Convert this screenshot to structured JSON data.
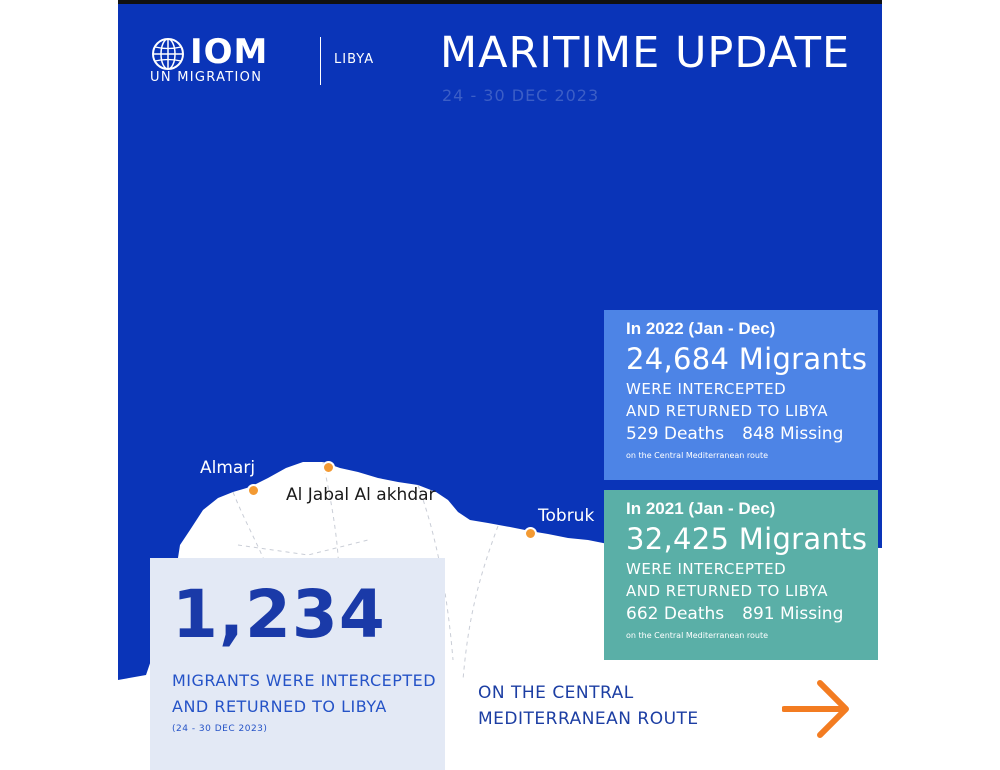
{
  "header": {
    "logo_word": "IOM",
    "logo_sub": "UN MIGRATION",
    "country": "LIBYA",
    "title": "MARITIME UPDATE",
    "date_range": "24 - 30 DEC 2023"
  },
  "map": {
    "cities": [
      "Almarj",
      "Al Jabal Al akhdar",
      "Tobruk"
    ]
  },
  "card_2022": {
    "year": "In 2022 (Jan - Dec)",
    "count": "24,684 Migrants",
    "line1": "WERE INTERCEPTED",
    "line2": "AND RETURNED TO LIBYA",
    "deaths": "529 Deaths",
    "missing": "848 Missing",
    "route": "on the Central Mediterranean route"
  },
  "card_2021": {
    "year": "In 2021 (Jan - Dec)",
    "count": "32,425 Migrants",
    "line1": "WERE INTERCEPTED",
    "line2": "AND RETURNED TO LIBYA",
    "deaths": "662 Deaths",
    "missing": "891 Missing",
    "route": "on the Central Mediterranean route"
  },
  "main": {
    "number": "1,234",
    "line1": "MIGRANTS WERE INTERCEPTED",
    "line2": "AND RETURNED TO LIBYA",
    "date": "(24 - 30 DEC 2023)"
  },
  "route_label": {
    "line1": "ON THE CENTRAL",
    "line2": "MEDITERRANEAN ROUTE"
  },
  "colors": {
    "sea": "#0a34b8",
    "land": "#ffffff",
    "card_2022": "#4d84e6",
    "card_2021": "#5aafa7",
    "accent": "#f37c21"
  },
  "icons": [
    "iom-globe-icon",
    "location-dot-icon",
    "arrow-right-icon"
  ]
}
